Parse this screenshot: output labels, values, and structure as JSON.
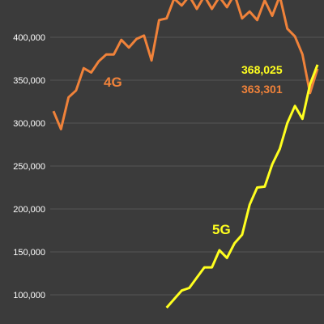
{
  "chart_data": {
    "type": "line",
    "title": "",
    "xlabel": "",
    "ylabel": "",
    "ylim": [
      100000,
      430000
    ],
    "y_ticks": [
      {
        "value": 100000,
        "label": "100,000"
      },
      {
        "value": 150000,
        "label": "150,000"
      },
      {
        "value": 200000,
        "label": "200,000"
      },
      {
        "value": 250000,
        "label": "250,000"
      },
      {
        "value": 300000,
        "label": "300,000"
      },
      {
        "value": 350000,
        "label": "350,000"
      },
      {
        "value": 400000,
        "label": "400,000"
      }
    ],
    "grid": true,
    "x_tick_labels_visible": false,
    "series": [
      {
        "name": "4G",
        "color": "#f0823a",
        "end_label": "363,301",
        "x": [
          0,
          1,
          2,
          3,
          4,
          5,
          6,
          7,
          8,
          9,
          10,
          11,
          12,
          13,
          14,
          15,
          16,
          17,
          18,
          19,
          20,
          21,
          22,
          23,
          24,
          25,
          26,
          27,
          28,
          29,
          30,
          31,
          32,
          33,
          34,
          35
        ],
        "values": [
          314000,
          293000,
          330000,
          338000,
          364000,
          359000,
          372000,
          380000,
          380000,
          397000,
          388000,
          398000,
          402000,
          373000,
          420000,
          422000,
          445000,
          437000,
          448000,
          433000,
          448000,
          433000,
          447000,
          435000,
          450000,
          422000,
          430000,
          420000,
          443000,
          425000,
          448000,
          410000,
          401000,
          380000,
          335000,
          363301
        ]
      },
      {
        "name": "5G",
        "color": "#ffff1f",
        "end_label": "368,025",
        "x": [
          15,
          16,
          17,
          18,
          19,
          20,
          21,
          22,
          23,
          24,
          25,
          26,
          27,
          28,
          29,
          30,
          31,
          32,
          33,
          34,
          35
        ],
        "values": [
          85000,
          95000,
          105000,
          108000,
          120000,
          132000,
          132000,
          152000,
          143000,
          160000,
          170000,
          205000,
          225000,
          226000,
          252000,
          270000,
          300000,
          320000,
          305000,
          345000,
          368025
        ]
      }
    ]
  }
}
